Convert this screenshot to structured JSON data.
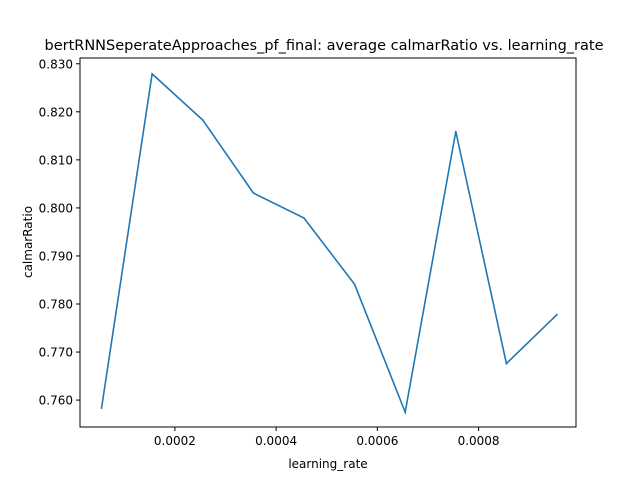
{
  "chart_data": {
    "type": "line",
    "title": "bertRNNSeperateApproaches_pf_final: average calmarRatio vs. learning_rate",
    "xlabel": "learning_rate",
    "ylabel": "calmarRatio",
    "xlim": [
      1.25e-05,
      0.0009925
    ],
    "ylim": [
      0.7544,
      0.8312
    ],
    "x_ticks": [
      0.0002,
      0.0004,
      0.0006,
      0.0008
    ],
    "x_tick_labels": [
      "0.0002",
      "0.0004",
      "0.0006",
      "0.0008"
    ],
    "y_ticks": [
      0.76,
      0.77,
      0.78,
      0.79,
      0.8,
      0.81,
      0.82,
      0.83
    ],
    "y_tick_labels": [
      "0.760",
      "0.770",
      "0.780",
      "0.790",
      "0.800",
      "0.810",
      "0.820",
      "0.830"
    ],
    "grid": false,
    "series": [
      {
        "color": "#1f77b4",
        "x": [
          5.5e-05,
          0.000155,
          0.000255,
          0.000355,
          0.000455,
          0.000555,
          0.000655,
          0.000755,
          0.000855,
          0.000955
        ],
        "y": [
          0.7583,
          0.8279,
          0.8183,
          0.8031,
          0.7979,
          0.7841,
          0.7575,
          0.8159,
          0.7676,
          0.7778
        ]
      }
    ]
  }
}
